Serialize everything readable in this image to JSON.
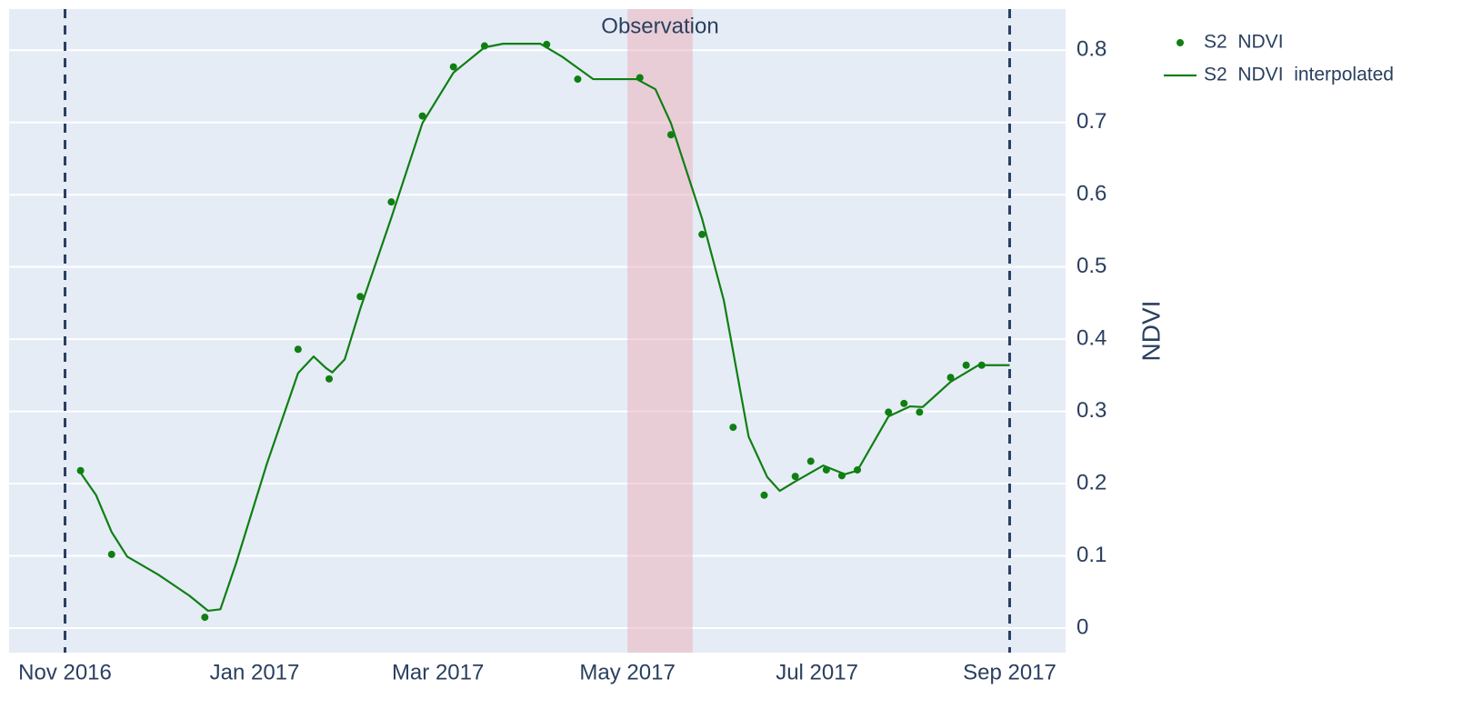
{
  "chart_data": {
    "type": "line",
    "y_label": "NDVI",
    "y_axis_side": "right",
    "grid": true,
    "xlim": [
      "2016-10-14",
      "2017-09-19"
    ],
    "xticks": [
      {
        "value": "2016-11-01",
        "label": "Nov 2016"
      },
      {
        "value": "2017-01-01",
        "label": "Jan 2017"
      },
      {
        "value": "2017-03-01",
        "label": "Mar 2017"
      },
      {
        "value": "2017-05-01",
        "label": "May 2017"
      },
      {
        "value": "2017-07-01",
        "label": "Jul 2017"
      },
      {
        "value": "2017-09-01",
        "label": "Sep 2017"
      }
    ],
    "ylim": [
      -0.034,
      0.857
    ],
    "yticks": [
      0,
      0.1,
      0.2,
      0.3,
      0.4,
      0.5,
      0.6,
      0.7,
      0.8
    ],
    "vlines": [
      "2016-11-01",
      "2017-09-01"
    ],
    "highlight": {
      "label": "Observation",
      "start": "2017-05-01",
      "end": "2017-05-22",
      "color": "rgba(235,180,190,0.55)"
    },
    "series": [
      {
        "name": "S2  NDVI",
        "mode": "markers",
        "color": "#0f7f12",
        "x": [
          "2016-11-06",
          "2016-11-16",
          "2016-12-16",
          "2017-01-15",
          "2017-01-25",
          "2017-02-04",
          "2017-02-14",
          "2017-02-24",
          "2017-03-06",
          "2017-03-16",
          "2017-04-05",
          "2017-04-15",
          "2017-05-05",
          "2017-05-15",
          "2017-05-25",
          "2017-06-04",
          "2017-06-14",
          "2017-06-24",
          "2017-06-29",
          "2017-07-04",
          "2017-07-09",
          "2017-07-14",
          "2017-07-24",
          "2017-07-29",
          "2017-08-03",
          "2017-08-13",
          "2017-08-18",
          "2017-08-23"
        ],
        "values": [
          0.218,
          0.102,
          0.015,
          0.386,
          0.345,
          0.459,
          0.59,
          0.709,
          0.777,
          0.806,
          0.808,
          0.76,
          0.762,
          0.683,
          0.545,
          0.278,
          0.184,
          0.21,
          0.231,
          0.219,
          0.211,
          0.219,
          0.299,
          0.311,
          0.299,
          0.347,
          0.364,
          0.364
        ]
      },
      {
        "name": "S2  NDVI  interpolated",
        "mode": "lines",
        "color": "#0f7f12",
        "x": [
          "2016-11-06",
          "2016-11-11",
          "2016-11-16",
          "2016-11-21",
          "2016-12-01",
          "2016-12-11",
          "2016-12-17",
          "2016-12-21",
          "2016-12-26",
          "2017-01-05",
          "2017-01-15",
          "2017-01-20",
          "2017-01-24",
          "2017-01-26",
          "2017-01-30",
          "2017-02-04",
          "2017-02-14",
          "2017-02-24",
          "2017-03-06",
          "2017-03-16",
          "2017-03-22",
          "2017-04-03",
          "2017-04-10",
          "2017-04-20",
          "2017-05-04",
          "2017-05-10",
          "2017-05-15",
          "2017-05-25",
          "2017-06-01",
          "2017-06-09",
          "2017-06-15",
          "2017-06-19",
          "2017-06-24",
          "2017-07-03",
          "2017-07-10",
          "2017-07-14",
          "2017-07-24",
          "2017-07-31",
          "2017-08-04",
          "2017-08-13",
          "2017-08-22",
          "2017-09-01"
        ],
        "values": [
          0.215,
          0.184,
          0.133,
          0.099,
          0.074,
          0.045,
          0.024,
          0.026,
          0.089,
          0.228,
          0.353,
          0.376,
          0.36,
          0.354,
          0.372,
          0.442,
          0.568,
          0.699,
          0.769,
          0.804,
          0.809,
          0.809,
          0.791,
          0.76,
          0.76,
          0.746,
          0.699,
          0.567,
          0.454,
          0.265,
          0.209,
          0.19,
          0.203,
          0.225,
          0.213,
          0.218,
          0.293,
          0.307,
          0.306,
          0.341,
          0.364,
          0.364
        ]
      }
    ]
  }
}
